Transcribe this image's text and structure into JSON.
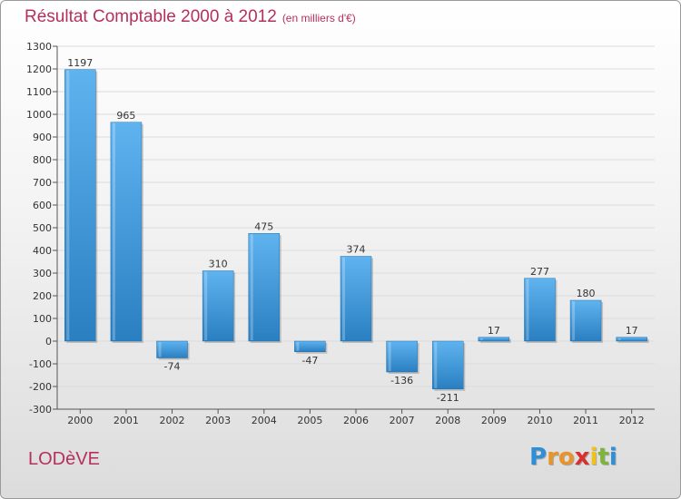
{
  "title": "Résultat Comptable 2000 à 2012",
  "subtitle": "(en milliers d'€)",
  "commune": "LODèVE",
  "brand": {
    "letters": [
      "P",
      "r",
      "o",
      "x",
      "i",
      "t",
      "i"
    ],
    "colors": [
      "#2e8fd6",
      "#e8942a",
      "#e8942a",
      "#d8302f",
      "#f2c21b",
      "#7cb53a",
      "#2e8fd6"
    ]
  },
  "colors": {
    "bar_top": "#5fb3ef",
    "bar_bottom": "#2a7fc1",
    "title": "#b5305c",
    "grid": "#dcdcdc",
    "axis": "#555555"
  },
  "chart_data": {
    "type": "bar",
    "title": "Résultat Comptable 2000 à 2012",
    "xlabel": "",
    "ylabel": "",
    "ylim": [
      -300,
      1300
    ],
    "yticks": [
      -300,
      -200,
      -100,
      0,
      100,
      200,
      300,
      400,
      500,
      600,
      700,
      800,
      900,
      1000,
      1100,
      1200,
      1300
    ],
    "categories": [
      "2000",
      "2001",
      "2002",
      "2003",
      "2004",
      "2005",
      "2006",
      "2007",
      "2008",
      "2009",
      "2010",
      "2011",
      "2012"
    ],
    "values": [
      1197,
      965,
      -74,
      310,
      475,
      -47,
      374,
      -136,
      -211,
      17,
      277,
      180,
      17
    ],
    "grid": true
  }
}
